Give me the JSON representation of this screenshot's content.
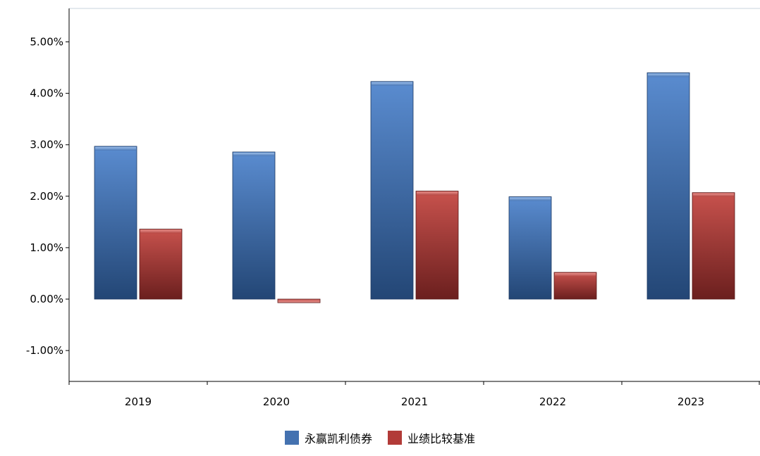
{
  "chart_data": {
    "type": "bar",
    "title": "",
    "xlabel": "",
    "ylabel": "",
    "categories": [
      "2019",
      "2020",
      "2021",
      "2022",
      "2023"
    ],
    "series": [
      {
        "name": "永赢凯利债券",
        "values": [
          2.97,
          2.86,
          4.23,
          1.99,
          4.4
        ],
        "color": "#4472b0"
      },
      {
        "name": "业绩比较基准",
        "values": [
          1.36,
          -0.07,
          2.1,
          0.52,
          2.07
        ],
        "color": "#b23b38"
      }
    ],
    "ylim": [
      -1.6,
      5.65
    ],
    "yticks": [
      -1.0,
      0.0,
      1.0,
      2.0,
      3.0,
      4.0,
      5.0
    ],
    "ytick_labels": [
      "-1.00%",
      "0.00%",
      "1.00%",
      "2.00%",
      "3.00%",
      "4.00%",
      "5.00%"
    ],
    "grid": false,
    "legend_position": "bottom-center"
  }
}
